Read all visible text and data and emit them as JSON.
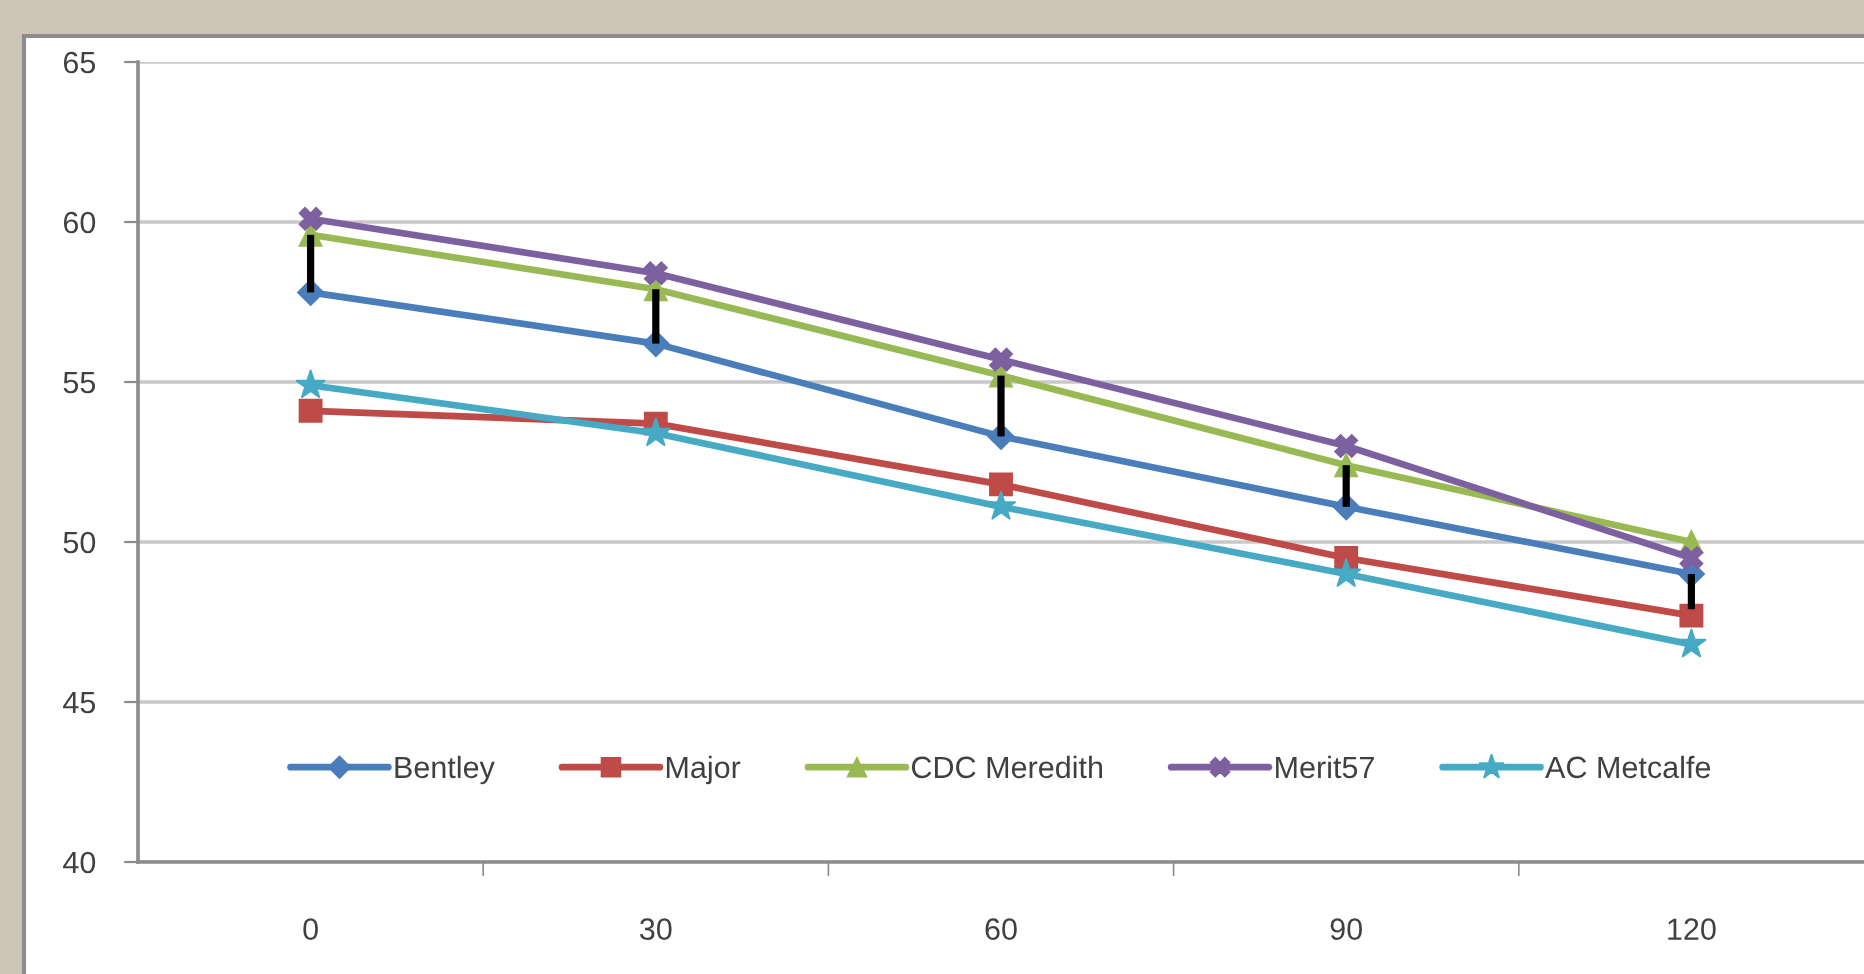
{
  "chart_data": {
    "type": "line",
    "categories": [
      "0",
      "30",
      "60",
      "90",
      "120"
    ],
    "series": [
      {
        "name": "Bentley",
        "color": "#4a7ebb",
        "marker": "diamond",
        "values": [
          57.8,
          56.2,
          53.3,
          51.1,
          49.0
        ],
        "errors": [
          [
            57.8,
            59.6
          ],
          [
            56.2,
            57.9
          ],
          [
            53.3,
            55.2
          ],
          [
            51.1,
            52.4
          ],
          [
            47.9,
            49.0
          ]
        ]
      },
      {
        "name": "Major",
        "color": "#be4b48",
        "marker": "square",
        "values": [
          54.1,
          53.7,
          51.8,
          49.5,
          47.7
        ]
      },
      {
        "name": "CDC Meredith",
        "color": "#98b954",
        "marker": "triangle",
        "values": [
          59.6,
          57.9,
          55.2,
          52.4,
          50.0
        ]
      },
      {
        "name": "Merit57",
        "color": "#7d60a0",
        "marker": "cross",
        "values": [
          60.1,
          58.4,
          55.7,
          53.0,
          49.5
        ]
      },
      {
        "name": "AC Metcalfe",
        "color": "#46aac5",
        "marker": "star",
        "values": [
          54.9,
          53.4,
          51.1,
          49.0,
          46.8
        ]
      }
    ],
    "ylim": [
      40,
      65
    ],
    "yticks": [
      40,
      45,
      50,
      55,
      60,
      65
    ],
    "grid": "y",
    "legend": "bottom"
  }
}
